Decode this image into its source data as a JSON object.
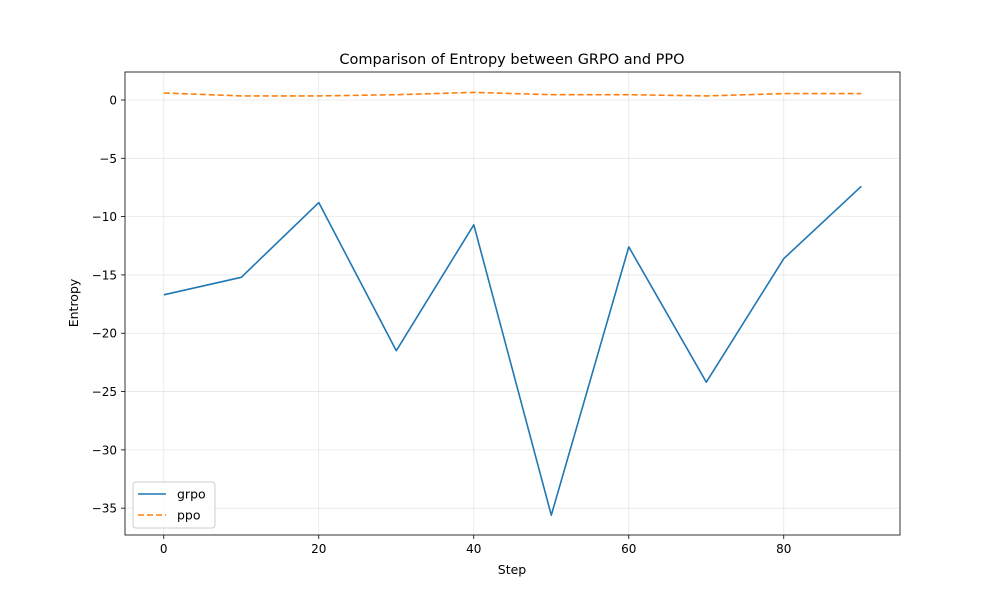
{
  "chart_data": {
    "type": "line",
    "title": "Comparison of Entropy between GRPO and PPO",
    "xlabel": "Step",
    "ylabel": "Entropy",
    "xlim": [
      -5,
      95
    ],
    "ylim": [
      -37.3,
      2.4
    ],
    "xticks": [
      0,
      20,
      40,
      60,
      80
    ],
    "yticks": [
      0,
      -5,
      -10,
      -15,
      -20,
      -25,
      -30,
      -35
    ],
    "grid": true,
    "legend_position": "lower-left",
    "x": [
      0,
      10,
      20,
      30,
      40,
      50,
      60,
      70,
      80,
      90
    ],
    "series": [
      {
        "name": "grpo",
        "color": "#1f77b4",
        "dash": "solid",
        "values": [
          -16.7,
          -15.2,
          -8.8,
          -21.5,
          -10.7,
          -35.6,
          -12.6,
          -24.2,
          -13.6,
          -7.4
        ]
      },
      {
        "name": "ppo",
        "color": "#ff7f0e",
        "dash": "dashed",
        "values": [
          0.6,
          0.35,
          0.35,
          0.45,
          0.65,
          0.45,
          0.45,
          0.35,
          0.55,
          0.55
        ]
      }
    ]
  }
}
